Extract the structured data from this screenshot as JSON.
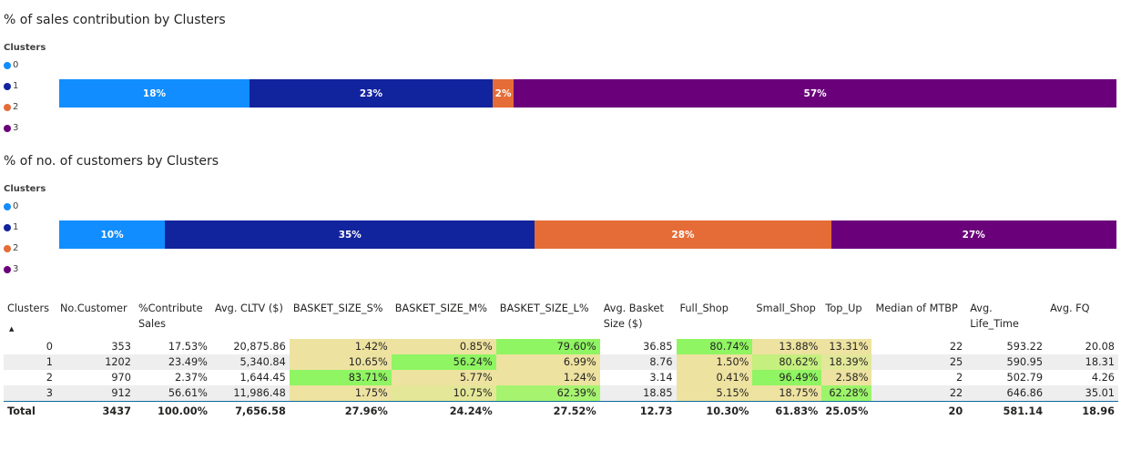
{
  "chart_data": [
    {
      "type": "bar",
      "orientation": "horizontal-100%-stacked",
      "title": "% of sales contribution by Clusters",
      "legend_title": "Clusters",
      "legend_position": "left",
      "categories": [
        "0",
        "1",
        "2",
        "3"
      ],
      "colors": [
        "#118dff",
        "#12239e",
        "#e66c37",
        "#6b007b"
      ],
      "values": [
        18,
        23,
        2,
        57
      ],
      "labels": [
        "18%",
        "23%",
        "2%",
        "57%"
      ]
    },
    {
      "type": "bar",
      "orientation": "horizontal-100%-stacked",
      "title": "% of no. of customers by Clusters",
      "legend_title": "Clusters",
      "legend_position": "left",
      "categories": [
        "0",
        "1",
        "2",
        "3"
      ],
      "colors": [
        "#118dff",
        "#12239e",
        "#e66c37",
        "#6b007b"
      ],
      "values": [
        10,
        35,
        28,
        27
      ],
      "labels": [
        "10%",
        "35%",
        "28%",
        "27%"
      ]
    },
    {
      "type": "table",
      "columns": [
        "Clusters",
        "No.Customer",
        "%Contribute Sales",
        "Avg. CLTV ($)",
        "BASKET_SIZE_S%",
        "BASKET_SIZE_M%",
        "BASKET_SIZE_L%",
        "Avg. Basket Size ($)",
        "Full_Shop",
        "Small_Shop",
        "Top_Up",
        "Median of MTBP",
        "Avg. Life_Time",
        "Avg. FQ"
      ],
      "rows": [
        [
          "0",
          "353",
          "17.53%",
          "20,875.86",
          "1.42%",
          "0.85%",
          "79.60%",
          "36.85",
          "80.74%",
          "13.88%",
          "13.31%",
          "22",
          "593.22",
          "20.08"
        ],
        [
          "1",
          "1202",
          "23.49%",
          "5,340.84",
          "10.65%",
          "56.24%",
          "6.99%",
          "8.76",
          "1.50%",
          "80.62%",
          "18.39%",
          "25",
          "590.95",
          "18.31"
        ],
        [
          "2",
          "970",
          "2.37%",
          "1,644.45",
          "83.71%",
          "5.77%",
          "1.24%",
          "3.14",
          "0.41%",
          "96.49%",
          "2.58%",
          "2",
          "502.79",
          "4.26"
        ],
        [
          "3",
          "912",
          "56.61%",
          "11,986.48",
          "1.75%",
          "10.75%",
          "62.39%",
          "18.85",
          "5.15%",
          "18.75%",
          "62.28%",
          "22",
          "646.86",
          "35.01"
        ]
      ],
      "cell_colors": [
        [
          null,
          null,
          null,
          null,
          "#ede2a0",
          "#ede2a0",
          "#8ff562",
          null,
          "#8ff562",
          "#ede2a0",
          "#ede2a0",
          null,
          null,
          null
        ],
        [
          null,
          null,
          null,
          null,
          "#ede2a0",
          "#8ff562",
          "#ede2a0",
          null,
          "#ede2a0",
          "#c5ef7e",
          "#e2e89a",
          null,
          null,
          null
        ],
        [
          null,
          null,
          null,
          null,
          "#8ff562",
          "#ede2a0",
          "#ede2a0",
          null,
          "#ede2a0",
          "#8ff562",
          "#ede2a0",
          null,
          null,
          null
        ],
        [
          null,
          null,
          null,
          null,
          "#ede2a0",
          "#e3e797",
          "#a6f36f",
          null,
          "#ede2a0",
          "#ede2a0",
          "#9cf46a",
          null,
          null,
          null
        ]
      ],
      "total": [
        "Total",
        "3437",
        "100.00%",
        "7,656.58",
        "27.96%",
        "24.24%",
        "27.52%",
        "12.73",
        "10.30%",
        "61.83%",
        "25.05%",
        "20",
        "581.14",
        "18.96"
      ],
      "sort_column": "Clusters",
      "sort_icon": "sort-ascending-icon"
    }
  ]
}
